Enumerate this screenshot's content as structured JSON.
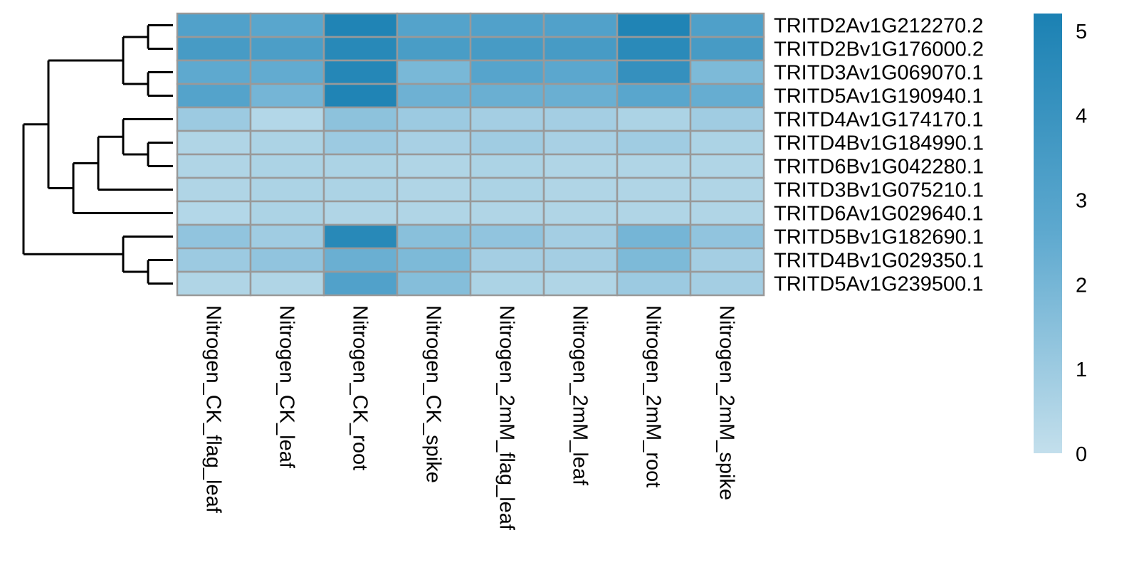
{
  "chart_data": {
    "type": "heatmap",
    "title": "",
    "columns": [
      "Nitrogen_CK_flag_leaf",
      "Nitrogen_CK_leaf",
      "Nitrogen_CK_root",
      "Nitrogen_CK_spike",
      "Nitrogen_2mM_flag_leaf",
      "Nitrogen_2mM_leaf",
      "Nitrogen_2mM_root",
      "Nitrogen_2mM_spike"
    ],
    "rows": [
      "TRITD2Av1G212270.2",
      "TRITD2Bv1G176000.2",
      "TRITD3Av1G069070.1",
      "TRITD5Av1G190940.1",
      "TRITD4Av1G174170.1",
      "TRITD4Bv1G184990.1",
      "TRITD6Bv1G042280.1",
      "TRITD3Bv1G075210.1",
      "TRITD6Av1G029640.1",
      "TRITD5Bv1G182690.1",
      "TRITD4Bv1G029350.1",
      "TRITD5Av1G239500.1"
    ],
    "values": [
      [
        3.1,
        2.8,
        5.0,
        3.0,
        3.1,
        3.1,
        5.0,
        3.2
      ],
      [
        3.5,
        3.3,
        4.7,
        3.4,
        3.5,
        3.5,
        4.6,
        3.5
      ],
      [
        2.6,
        2.5,
        4.8,
        1.9,
        2.9,
        2.7,
        4.2,
        1.8
      ],
      [
        3.0,
        2.0,
        5.0,
        2.2,
        2.3,
        2.3,
        2.8,
        2.4
      ],
      [
        1.0,
        0.4,
        1.4,
        1.0,
        0.8,
        0.8,
        0.6,
        0.9
      ],
      [
        0.5,
        0.6,
        1.0,
        0.7,
        0.9,
        0.7,
        0.9,
        0.6
      ],
      [
        0.5,
        0.6,
        0.6,
        0.5,
        0.6,
        0.5,
        0.5,
        0.5
      ],
      [
        0.5,
        0.6,
        0.6,
        0.5,
        0.6,
        0.5,
        0.5,
        0.5
      ],
      [
        0.4,
        0.6,
        0.5,
        0.5,
        0.5,
        0.5,
        0.5,
        0.5
      ],
      [
        1.3,
        0.9,
        4.7,
        1.5,
        1.3,
        0.8,
        2.0,
        1.3
      ],
      [
        1.0,
        1.3,
        2.3,
        1.8,
        0.8,
        0.8,
        1.8,
        0.8
      ],
      [
        0.5,
        0.5,
        3.1,
        1.6,
        0.6,
        0.5,
        1.0,
        0.8
      ]
    ],
    "colorbar": {
      "min": 0,
      "max": 5.2,
      "ticks": [
        "0",
        "1",
        "2",
        "3",
        "4",
        "5"
      ],
      "low_color": "#c3dfec",
      "mid_color": "#5ea9cf",
      "high_color": "#1b81b3"
    },
    "row_dendrogram": "((((TRITD2Av1G212270.2,TRITD2Bv1G176000.2),(TRITD3Av1G069070.1,TRITD5Av1G190940.1)),(((TRITD4Av1G174170.1,(TRITD4Bv1G184990.1,TRITD6Bv1G042280.1)),TRITD3Bv1G075210.1),TRITD6Av1G029640.1)),(TRITD5Bv1G182690.1,(TRITD4Bv1G029350.1,TRITD5Av1G239500.1)))",
    "grid": true,
    "legend_position": "right"
  }
}
